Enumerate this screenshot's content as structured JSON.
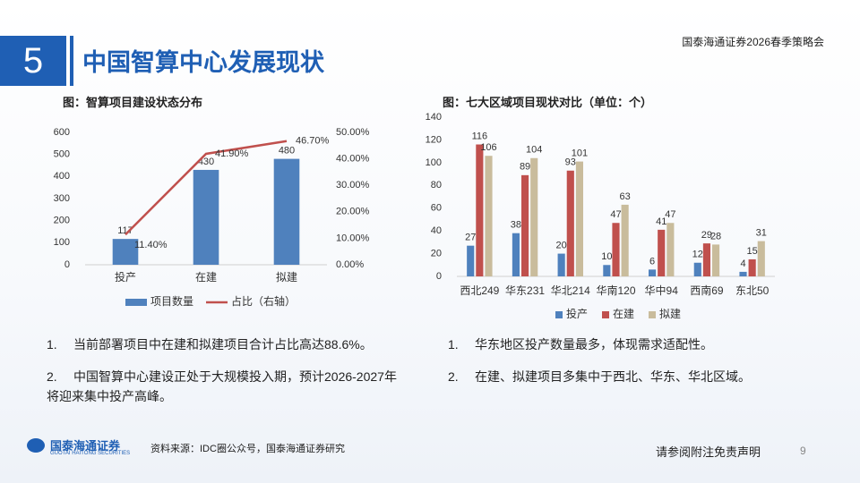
{
  "header": {
    "number": "5",
    "title": "中国智算中心发展现状",
    "event": "国泰海通证券2026春季策略会"
  },
  "chart_data": [
    {
      "type": "bar",
      "title": "图：智算项目建设状态分布",
      "categories": [
        "投产",
        "在建",
        "拟建"
      ],
      "series": [
        {
          "name": "项目数量",
          "type": "bar",
          "color": "#4f81bd",
          "values": [
            117,
            430,
            480
          ]
        },
        {
          "name": "占比（右轴）",
          "type": "line",
          "axis": "y2",
          "color": "#c0504d",
          "values": [
            11.4,
            41.9,
            46.7
          ],
          "value_labels": [
            "11.40%",
            "41.90%",
            "46.70%"
          ]
        }
      ],
      "ylim": [
        0,
        600
      ],
      "yticks": [
        0,
        100,
        200,
        300,
        400,
        500,
        600
      ],
      "y2lim": [
        0,
        50
      ],
      "y2ticks": [
        {
          "value": 0,
          "label": "0.00%"
        },
        {
          "value": 10,
          "label": "10.00%"
        },
        {
          "value": 20,
          "label": "20.00%"
        },
        {
          "value": 30,
          "label": "30.00%"
        },
        {
          "value": 40,
          "label": "40.00%"
        },
        {
          "value": 50,
          "label": "50.00%"
        }
      ],
      "legend": "bottom"
    },
    {
      "type": "bar",
      "title": "图：七大区域项目现状对比（单位：个）",
      "categories": [
        "西北249",
        "华东231",
        "华北214",
        "华南120",
        "华中94",
        "西南69",
        "东北50"
      ],
      "series": [
        {
          "name": "投产",
          "color": "#4f81bd",
          "values": [
            27,
            38,
            20,
            10,
            6,
            12,
            4
          ]
        },
        {
          "name": "在建",
          "color": "#c0504d",
          "values": [
            116,
            89,
            93,
            47,
            41,
            29,
            15
          ]
        },
        {
          "name": "拟建",
          "color": "#c9bc9c",
          "values": [
            106,
            104,
            101,
            63,
            47,
            28,
            31
          ]
        }
      ],
      "ylim": [
        0,
        140
      ],
      "yticks": [
        0,
        20,
        40,
        60,
        80,
        100,
        120,
        140
      ],
      "legend": "bottom"
    }
  ],
  "notes_left": [
    {
      "num": "1.",
      "text": "当前部署项目中在建和拟建项目合计占比高达88.6%。"
    },
    {
      "num": "2.",
      "text": "中国智算中心建设正处于大规模投入期，预计2026-2027年将迎来集中投产高峰。"
    }
  ],
  "notes_right": [
    {
      "num": "1.",
      "text": "华东地区投产数量最多，体现需求适配性。"
    },
    {
      "num": "2.",
      "text": "在建、拟建项目多集中于西北、华东、华北区域。"
    }
  ],
  "footer": {
    "logo": "国泰海通证券",
    "logo_en": "GUOTAI HAITONG SECURITIES",
    "source": "资料来源：IDC圈公众号，国泰海通证券研究",
    "disclaimer": "请参阅附注免责声明",
    "page": "9"
  }
}
